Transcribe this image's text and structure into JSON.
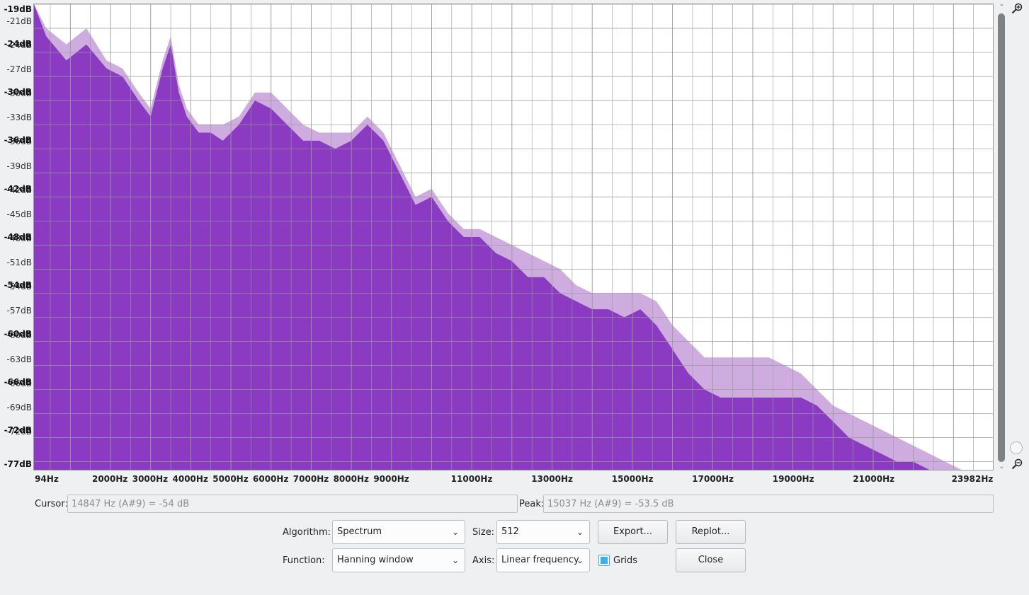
{
  "window": {
    "title": "Frequency Analysis"
  },
  "plot": {
    "y_labels_primary": [
      "-19dB",
      "-24dB",
      "-30dB",
      "-36dB",
      "-42dB",
      "-48dB",
      "-54dB",
      "-60dB",
      "-66dB",
      "-72dB",
      "-77dB"
    ],
    "y_labels_ghost": [
      "-21dB",
      "-24dB",
      "-27dB",
      "-30dB",
      "-33dB",
      "-36dB",
      "-39dB",
      "-42dB",
      "-45dB",
      "-48dB",
      "-51dB",
      "-54dB",
      "-57dB",
      "-60dB",
      "-63dB",
      "-66dB",
      "-69dB",
      "-72dB"
    ],
    "x_labels": [
      "94Hz",
      "2000Hz",
      "3000Hz",
      "4000Hz",
      "5000Hz",
      "6000Hz",
      "7000Hz",
      "8000Hz",
      "9000Hz",
      "11000Hz",
      "13000Hz",
      "15000Hz",
      "17000Hz",
      "19000Hz",
      "21000Hz",
      "23982Hz"
    ],
    "colors": {
      "fill": "#8a3bc2",
      "ghost_fill": "#cfacdf",
      "grid": "#9a9a9a"
    }
  },
  "chart_data": {
    "type": "area",
    "xlabel": "",
    "ylabel": "",
    "xlim": [
      94,
      23982
    ],
    "ylim": [
      -77,
      -19
    ],
    "grid": true,
    "x": [
      94,
      400,
      900,
      1400,
      1900,
      2300,
      2700,
      3000,
      3300,
      3500,
      3700,
      3900,
      4200,
      4500,
      4800,
      5200,
      5600,
      6000,
      6400,
      6800,
      7200,
      7600,
      8000,
      8400,
      8800,
      9200,
      9600,
      10000,
      10400,
      10800,
      11200,
      11600,
      12000,
      12400,
      12800,
      13200,
      13600,
      14000,
      14400,
      14800,
      15200,
      15600,
      16000,
      16400,
      16800,
      17200,
      17600,
      18000,
      18400,
      18800,
      19200,
      19600,
      20000,
      20400,
      20800,
      21200,
      21600,
      22000,
      22400,
      22800,
      23200,
      23600,
      23982
    ],
    "series": [
      {
        "values": [
          -19,
          -23,
          -26,
          -24,
          -27,
          -28,
          -31,
          -33,
          -27,
          -24,
          -30,
          -33,
          -35,
          -35,
          -36,
          -34,
          -31,
          -32,
          -34,
          -36,
          -36,
          -37,
          -36,
          -34,
          -36,
          -40,
          -44,
          -43,
          -46,
          -48,
          -48,
          -50,
          -51,
          -53,
          -53,
          -55,
          -56,
          -57,
          -57,
          -58,
          -57,
          -59,
          -62,
          -65,
          -67,
          -68,
          -68,
          -68,
          -68,
          -68,
          -68,
          -69,
          -71,
          -73,
          -74,
          -75,
          -76,
          -76,
          -77,
          -77,
          -77,
          -77,
          -77
        ]
      },
      {
        "values": [
          -19,
          -22,
          -24,
          -22,
          -26,
          -27,
          -30,
          -32,
          -26,
          -23,
          -29,
          -32,
          -34,
          -34,
          -34,
          -33,
          -30,
          -30,
          -32,
          -34,
          -35,
          -35,
          -35,
          -33,
          -35,
          -39,
          -43,
          -42,
          -45,
          -47,
          -47,
          -48,
          -49,
          -50,
          -51,
          -52,
          -54,
          -55,
          -55,
          -55,
          -55,
          -56,
          -59,
          -61,
          -63,
          -63,
          -63,
          -63,
          -63,
          -64,
          -65,
          -67,
          -69,
          -70,
          -71,
          -72,
          -73,
          -74,
          -75,
          -76,
          -77,
          -77,
          -77
        ]
      }
    ]
  },
  "cursor": {
    "label": "Cursor:",
    "value": "14847 Hz (A#9) = -54 dB"
  },
  "peak": {
    "label": "Peak:",
    "value": "15037 Hz (A#9) = -53.5 dB"
  },
  "controls": {
    "algorithm_label": "Algorithm:",
    "algorithm_value": "Spectrum",
    "size_label": "Size:",
    "size_value": "512",
    "function_label": "Function:",
    "function_value": "Hanning window",
    "axis_label": "Axis:",
    "axis_value": "Linear frequency",
    "export_label": "Export...",
    "replot_label": "Replot...",
    "grids_label": "Grids",
    "grids_checked": true,
    "close_label": "Close"
  },
  "icons": {
    "zoom_in": "zoom-in-icon",
    "zoom_out": "zoom-out-icon"
  }
}
